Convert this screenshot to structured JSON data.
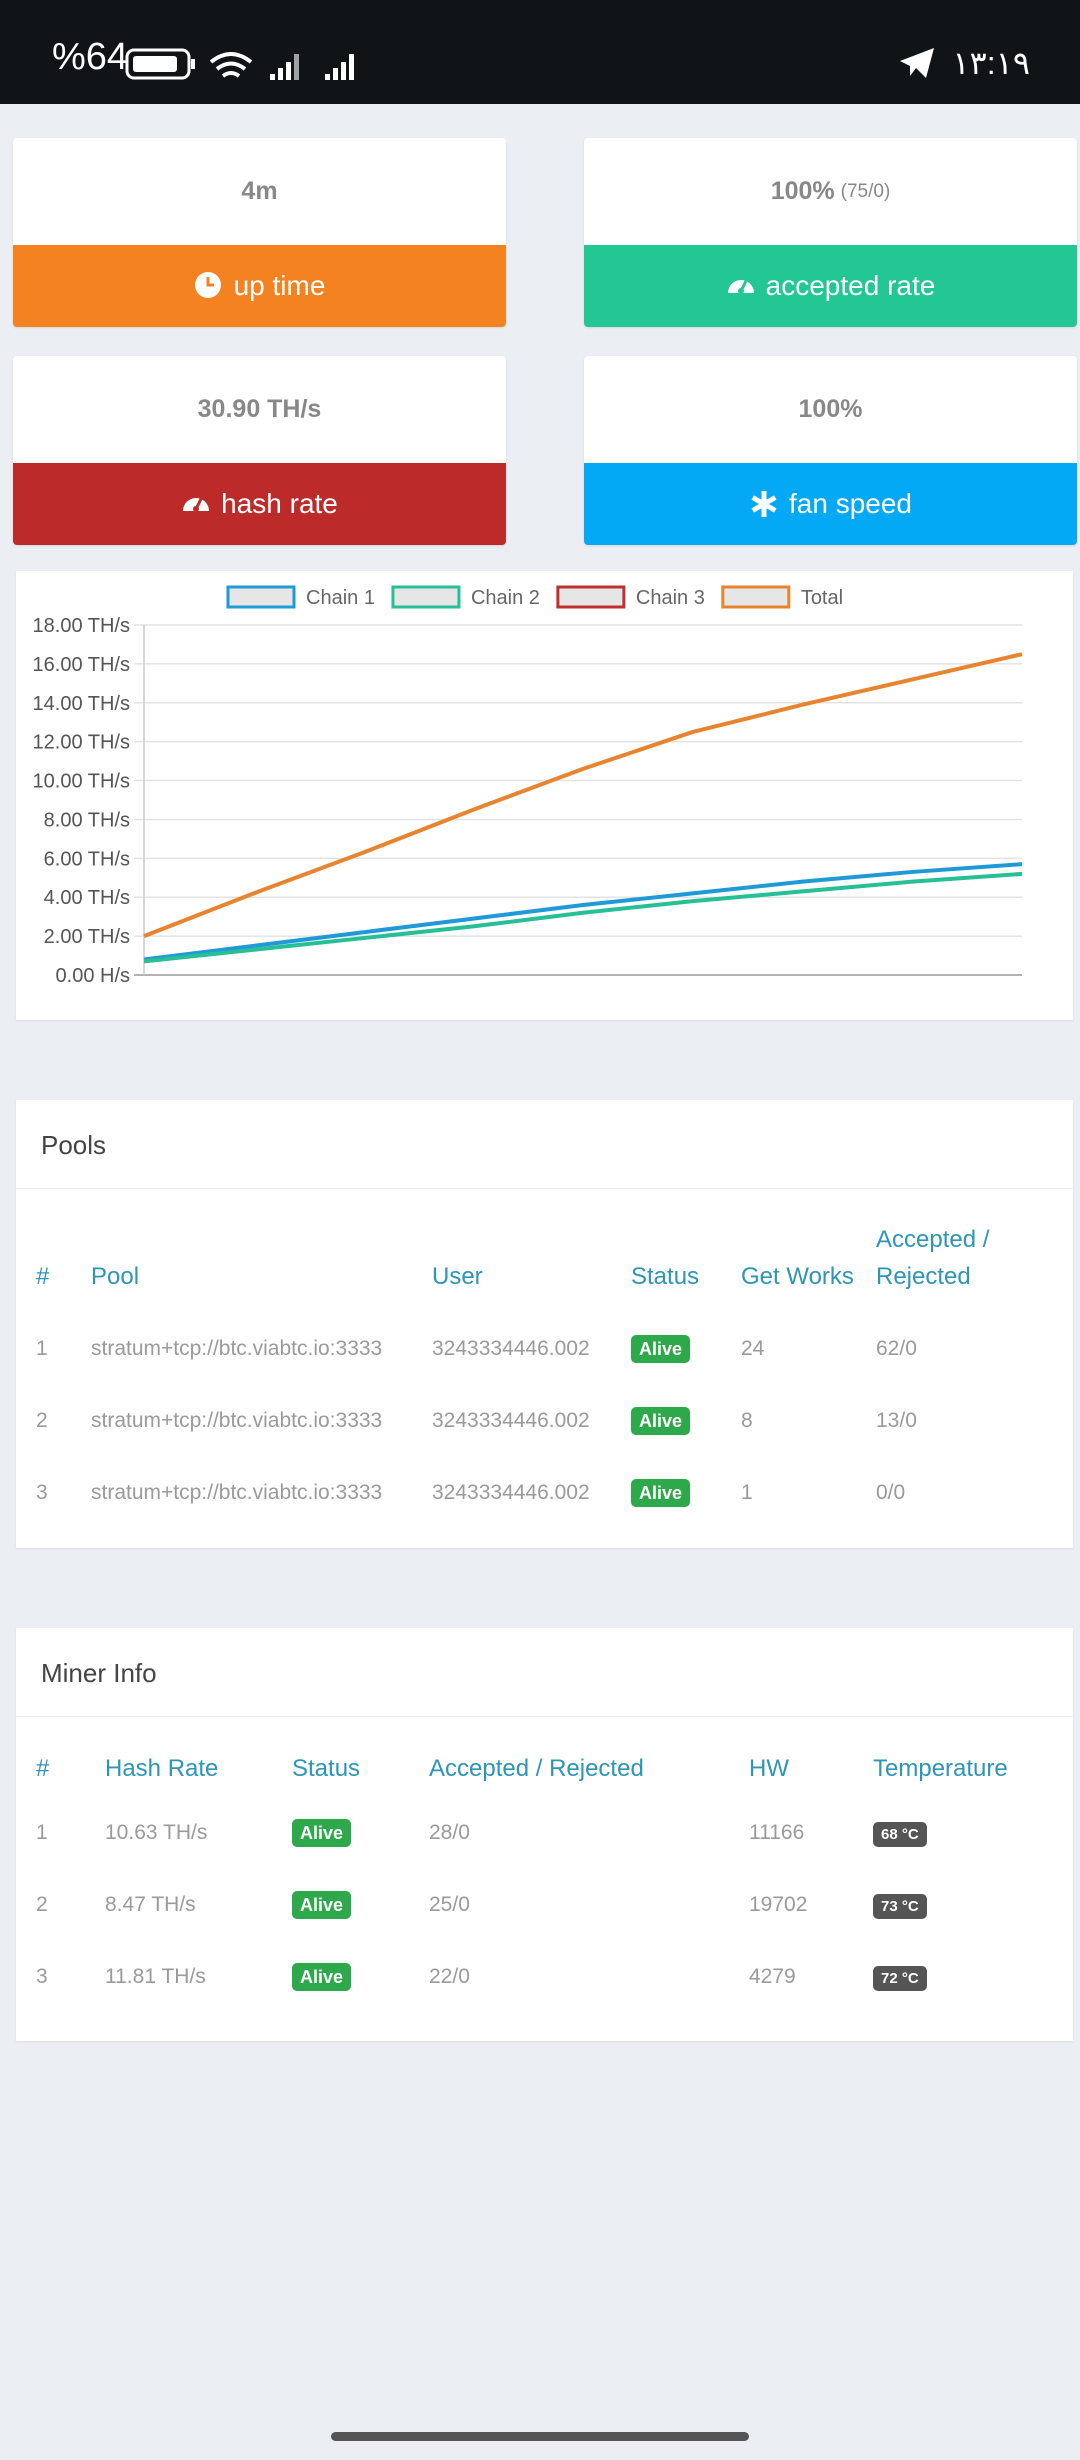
{
  "status_bar": {
    "battery": "%64",
    "time": "۱۳:۱۹"
  },
  "cards": [
    {
      "value": "4m",
      "label": "up time",
      "color": "#f58220"
    },
    {
      "value": "100%",
      "detail": "(75/0)",
      "label": "accepted rate",
      "color": "#22c793"
    },
    {
      "value": "30.90 TH/s",
      "label": "hash rate",
      "color": "#bd2a2a"
    },
    {
      "value": "100%",
      "label": "fan speed",
      "color": "#03a9f4"
    }
  ],
  "chart_data": {
    "type": "line",
    "categories": [
      null,
      null,
      null,
      null,
      null,
      null,
      null,
      null,
      null
    ],
    "series": [
      {
        "name": "Chain 1",
        "color": "#1f9ad6",
        "values": [
          0.8,
          1.5,
          2.2,
          2.9,
          3.6,
          4.2,
          4.8,
          5.3,
          5.7
        ]
      },
      {
        "name": "Chain 2",
        "color": "#27bf95",
        "values": [
          0.7,
          1.3,
          1.9,
          2.5,
          3.2,
          3.8,
          4.3,
          4.8,
          5.2
        ]
      },
      {
        "name": "Chain 3",
        "color": "#c0302e",
        "values": [
          null,
          null,
          null,
          null,
          null,
          null,
          null,
          null,
          null
        ]
      },
      {
        "name": "Total",
        "color": "#e8842f",
        "values": [
          2.0,
          4.2,
          6.3,
          8.5,
          10.6,
          12.5,
          13.9,
          15.2,
          16.5
        ]
      }
    ],
    "ylim": [
      0,
      18
    ],
    "yticks": [
      {
        "value": 0,
        "label": "0.00 H/s"
      },
      {
        "value": 2,
        "label": "2.00 TH/s"
      },
      {
        "value": 4,
        "label": "4.00 TH/s"
      },
      {
        "value": 6,
        "label": "6.00 TH/s"
      },
      {
        "value": 8,
        "label": "8.00 TH/s"
      },
      {
        "value": 10,
        "label": "10.00 TH/s"
      },
      {
        "value": 12,
        "label": "12.00 TH/s"
      },
      {
        "value": 14,
        "label": "14.00 TH/s"
      },
      {
        "value": 16,
        "label": "16.00 TH/s"
      },
      {
        "value": 18,
        "label": "18.00 TH/s"
      }
    ],
    "grid": true,
    "legend": "top"
  },
  "pools": {
    "title": "Pools",
    "columns": [
      "#",
      "Pool",
      "User",
      "Status",
      "Get Works",
      "Accepted / Rejected"
    ],
    "rows": [
      [
        "1",
        "stratum+tcp://btc.viabtc.io:3333",
        "3243334446.002",
        "Alive",
        "24",
        "62/0"
      ],
      [
        "2",
        "stratum+tcp://btc.viabtc.io:3333",
        "3243334446.002",
        "Alive",
        "8",
        "13/0"
      ],
      [
        "3",
        "stratum+tcp://btc.viabtc.io:3333",
        "3243334446.002",
        "Alive",
        "1",
        "0/0"
      ]
    ]
  },
  "miner_info": {
    "title": "Miner Info",
    "columns": [
      "#",
      "Hash Rate",
      "Status",
      "Accepted / Rejected",
      "HW",
      "Temperature"
    ],
    "rows": [
      [
        "1",
        "10.63 TH/s",
        "Alive",
        "28/0",
        "11166",
        "68 °C"
      ],
      [
        "2",
        "8.47 TH/s",
        "Alive",
        "25/0",
        "19702",
        "73 °C"
      ],
      [
        "3",
        "11.81 TH/s",
        "Alive",
        "22/0",
        "4279",
        "72 °C"
      ]
    ]
  }
}
